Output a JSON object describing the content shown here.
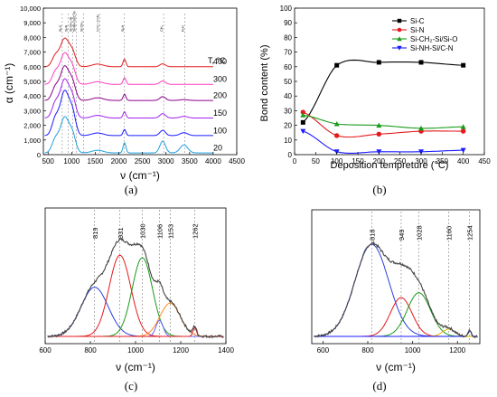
{
  "panels": {
    "a": {
      "caption": "(a)",
      "chart_data": {
        "type": "line",
        "ylabel": "α (cm⁻¹)",
        "xlabel": "ν (cm⁻¹)",
        "xlim": [
          400,
          4500
        ],
        "ylim": [
          0,
          10000
        ],
        "xticks": [
          500,
          1000,
          1500,
          2000,
          2500,
          3000,
          3500,
          4000,
          4500
        ],
        "yticks": [
          0,
          1000,
          2000,
          3000,
          4000,
          5000,
          6000,
          7000,
          8000,
          9000,
          10000
        ],
        "ytick_labels": [
          "0",
          "1,000",
          "2,000",
          "3,000",
          "4,000",
          "5,000",
          "6,000",
          "7,000",
          "8,000",
          "9,000",
          "10,000"
        ],
        "legend_title": "T, °C",
        "band_lines": [
          {
            "x": 800,
            "label": "Si-C"
          },
          {
            "x": 930,
            "label": "Si-N"
          },
          {
            "x": 1020,
            "label": "Si-CH₂-Si"
          },
          {
            "x": 1100,
            "label": "Si-NH-Si/C-N"
          },
          {
            "x": 1250,
            "label": "Si-CH₃"
          },
          {
            "x": 1600,
            "label": "C=C / C=N"
          },
          {
            "x": 2120,
            "label": "Si-H"
          },
          {
            "x": 2950,
            "label": "CH₂"
          },
          {
            "x": 3400,
            "label": "N-H"
          }
        ],
        "series": [
          {
            "name": "400",
            "color": "#e41a1c",
            "offset": 6000,
            "peak": 1900,
            "sh": 520,
            "ch": 200,
            "nh": 0
          },
          {
            "name": "300",
            "color": "#ff3ebf",
            "offset": 4800,
            "peak": 2100,
            "sh": 460,
            "ch": 230,
            "nh": 0
          },
          {
            "name": "200",
            "color": "#8b008b",
            "offset": 3700,
            "peak": 2300,
            "sh": 420,
            "ch": 260,
            "nh": 60
          },
          {
            "name": "150",
            "color": "#a020f0",
            "offset": 2500,
            "peak": 2600,
            "sh": 430,
            "ch": 300,
            "nh": 110
          },
          {
            "name": "100",
            "color": "#1a1aff",
            "offset": 1300,
            "peak": 3000,
            "sh": 420,
            "ch": 360,
            "nh": 200
          },
          {
            "name": "20",
            "color": "#1fa0e0",
            "offset": 120,
            "peak": 2400,
            "sh": 700,
            "ch": 800,
            "nh": 550
          }
        ]
      }
    },
    "b": {
      "caption": "(b)",
      "chart_data": {
        "type": "line",
        "ylabel": "Bond content (%)",
        "xlabel": "Deposition tempreture (°C)",
        "xlim": [
          0,
          450
        ],
        "ylim": [
          0,
          100
        ],
        "xticks": [
          0,
          50,
          100,
          150,
          200,
          250,
          300,
          350,
          400,
          450
        ],
        "yticks": [
          0,
          10,
          20,
          30,
          40,
          50,
          60,
          70,
          80,
          90,
          100
        ],
        "x": [
          20,
          100,
          200,
          300,
          400
        ],
        "series": [
          {
            "name": "Si-C",
            "color": "#000000",
            "marker": "square",
            "values": [
              22,
              61,
              63,
              63,
              61
            ]
          },
          {
            "name": "Si-N",
            "color": "#e41a1c",
            "marker": "circle",
            "values": [
              29,
              13,
              14,
              16,
              16
            ]
          },
          {
            "name": "Si-CH₂-Si/Si-O",
            "color": "#1a9a1a",
            "marker": "triangle-up",
            "values": [
              27,
              21,
              20,
              18,
              19
            ]
          },
          {
            "name": "Si-NH-Si/C-N",
            "color": "#1a1aff",
            "marker": "triangle-down",
            "values": [
              16,
              2,
              2,
              2,
              3
            ]
          }
        ]
      }
    },
    "c": {
      "caption": "(c)",
      "chart_data": {
        "type": "line",
        "xlabel": "ν (cm⁻¹)",
        "xlim": [
          600,
          1400
        ],
        "ylim": [
          0,
          1
        ],
        "xticks": [
          600,
          800,
          1000,
          1200,
          1400
        ],
        "peak_labels": [
          "819",
          "931",
          "1030",
          "1106",
          "1153",
          "1262"
        ],
        "series": [
          {
            "name": "819",
            "center": 819,
            "height": 0.4,
            "width": 60,
            "color": "#2a3fd8"
          },
          {
            "name": "931",
            "center": 931,
            "height": 0.66,
            "width": 48,
            "color": "#e41a1c"
          },
          {
            "name": "1030",
            "center": 1030,
            "height": 0.64,
            "width": 45,
            "color": "#1a9a1a"
          },
          {
            "name": "1106",
            "center": 1106,
            "height": 0.13,
            "width": 16,
            "color": "#6060ff"
          },
          {
            "name": "1153",
            "center": 1153,
            "height": 0.27,
            "width": 45,
            "color": "#ff8c1a"
          },
          {
            "name": "1262",
            "center": 1262,
            "height": 0.07,
            "width": 8,
            "color": "#e41a1c"
          }
        ]
      }
    },
    "d": {
      "caption": "(d)",
      "chart_data": {
        "type": "line",
        "xlabel": "ν (cm⁻¹)",
        "xlim": [
          550,
          1300
        ],
        "ylim": [
          0,
          1
        ],
        "xticks": [
          600,
          800,
          1000,
          1200
        ],
        "peak_labels": [
          "818",
          "949",
          "1028",
          "1160",
          "1254"
        ],
        "series": [
          {
            "name": "818",
            "center": 818,
            "height": 0.76,
            "width": 75,
            "color": "#2a3fd8"
          },
          {
            "name": "949",
            "center": 949,
            "height": 0.32,
            "width": 48,
            "color": "#e41a1c"
          },
          {
            "name": "1028",
            "center": 1028,
            "height": 0.36,
            "width": 52,
            "color": "#1a9a1a"
          },
          {
            "name": "1160",
            "center": 1160,
            "height": 0.06,
            "width": 28,
            "color": "#e6b800"
          },
          {
            "name": "1254",
            "center": 1254,
            "height": 0.05,
            "width": 7,
            "color": "#1a1aff"
          }
        ]
      }
    }
  }
}
